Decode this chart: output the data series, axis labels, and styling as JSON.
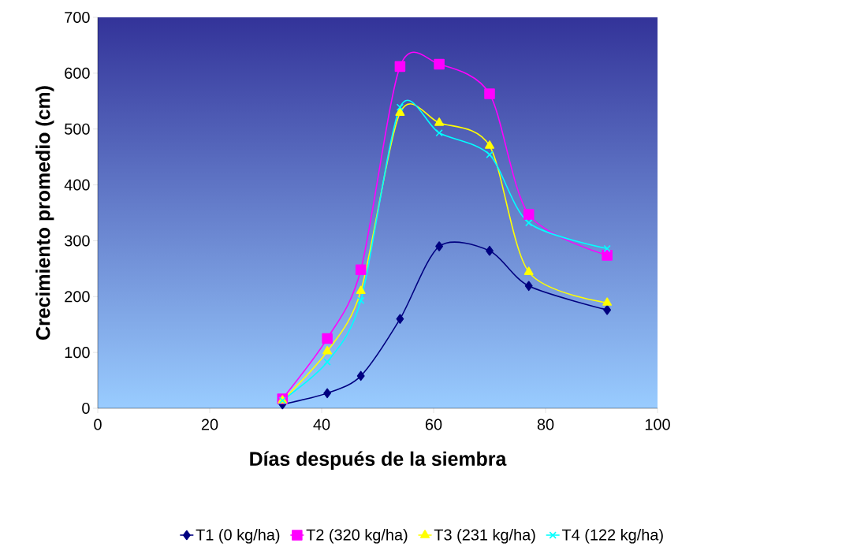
{
  "chart_data": {
    "type": "line",
    "xlabel": "Días después de la siembra",
    "ylabel": "Crecimiento promedio (cm)",
    "x": [
      33,
      41,
      47,
      54,
      61,
      70,
      77,
      91
    ],
    "series": [
      {
        "name": "T1 (0 kg/ha)",
        "color": "#000080",
        "marker": "diamond",
        "values": [
          7,
          27,
          58,
          160,
          290,
          282,
          219,
          176
        ]
      },
      {
        "name": "T2 (320 kg/ha)",
        "color": "#ff00ff",
        "marker": "square",
        "values": [
          17,
          125,
          248,
          612,
          616,
          563,
          347,
          274
        ]
      },
      {
        "name": "T3 (231 kg/ha)",
        "color": "#ffff00",
        "marker": "triangle",
        "values": [
          14,
          102,
          210,
          529,
          511,
          470,
          244,
          189
        ]
      },
      {
        "name": "T4 (122 kg/ha)",
        "color": "#00ffff",
        "marker": "cross",
        "values": [
          14,
          83,
          193,
          539,
          493,
          454,
          332,
          286
        ]
      }
    ],
    "xlim": [
      0,
      100
    ],
    "xticks": [
      0,
      20,
      40,
      60,
      80,
      100
    ],
    "ylim": [
      0,
      700
    ],
    "yticks": [
      0,
      100,
      200,
      300,
      400,
      500,
      600,
      700
    ],
    "grid": false,
    "legend": "bottom",
    "line_style": "solid"
  }
}
